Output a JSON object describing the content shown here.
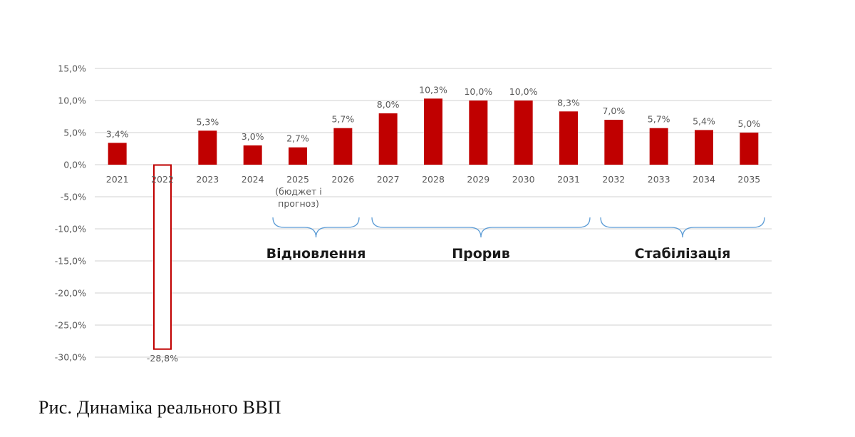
{
  "chart_data": {
    "type": "bar",
    "title": "",
    "xlabel": "",
    "ylabel": "",
    "categories": [
      "2021",
      "2022",
      "2023",
      "2024",
      "2025",
      "2026",
      "2027",
      "2028",
      "2029",
      "2030",
      "2031",
      "2032",
      "2033",
      "2034",
      "2035"
    ],
    "category_sublabels": {
      "2025": [
        "(бюджет і",
        "прогноз)"
      ]
    },
    "values": [
      3.4,
      -28.8,
      5.3,
      3.0,
      2.7,
      5.7,
      8.0,
      10.3,
      10.0,
      10.0,
      8.3,
      7.0,
      5.7,
      5.4,
      5.0
    ],
    "data_labels": [
      "3,4%",
      "-28,8%",
      "5,3%",
      "3,0%",
      "2,7%",
      "5,7%",
      "8,0%",
      "10,3%",
      "10,0%",
      "10,0%",
      "8,3%",
      "7,0%",
      "5,7%",
      "5,4%",
      "5,0%"
    ],
    "ylim": [
      -30,
      15
    ],
    "yticks": [
      15,
      10,
      5,
      0,
      -5,
      -10,
      -15,
      -20,
      -25,
      -30
    ],
    "ytick_labels": [
      "15,0%",
      "10,0%",
      "5,0%",
      "0,0%",
      "-5,0%",
      "-10,0%",
      "-15,0%",
      "-20,0%",
      "-25,0%",
      "-30,0%"
    ],
    "grid": true,
    "legend": null,
    "bar_styles": {
      "default": "filled",
      "2022": "outline"
    },
    "annotations": [
      {
        "type": "brace",
        "label": "Відновлення",
        "span": [
          "2025",
          "2026"
        ]
      },
      {
        "type": "brace",
        "label": "Прорив",
        "span": [
          "2027",
          "2031"
        ]
      },
      {
        "type": "brace",
        "label": "Стабілізація",
        "span": [
          "2032",
          "2035"
        ]
      }
    ]
  },
  "colors": {
    "bar": "#c00000",
    "outline_bar": "#c00000",
    "grid": "#e0e0e0",
    "axis_text": "#595959",
    "brace": "#5b9bd5",
    "phase_label": "#1a1a1a"
  },
  "caption": "Рис. Динаміка реального ВВП"
}
